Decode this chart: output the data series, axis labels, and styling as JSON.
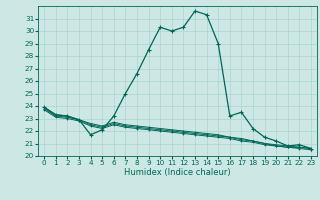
{
  "xlabel": "Humidex (Indice chaleur)",
  "bg_color": "#cde8e4",
  "line_color": "#006655",
  "grid_color": "#a8d4ce",
  "xlim": [
    -0.5,
    23.5
  ],
  "ylim": [
    20,
    32
  ],
  "yticks": [
    20,
    21,
    22,
    23,
    24,
    25,
    26,
    27,
    28,
    29,
    30,
    31
  ],
  "xticks": [
    0,
    1,
    2,
    3,
    4,
    5,
    6,
    7,
    8,
    9,
    10,
    11,
    12,
    13,
    14,
    15,
    16,
    17,
    18,
    19,
    20,
    21,
    22,
    23
  ],
  "curve_x": [
    0,
    1,
    2,
    3,
    4,
    5,
    6,
    7,
    8,
    9,
    10,
    11,
    12,
    13,
    14,
    15,
    16,
    17,
    18,
    19,
    20,
    21,
    22,
    23
  ],
  "curve_y": [
    23.9,
    23.3,
    23.2,
    22.9,
    21.7,
    22.1,
    23.2,
    25.0,
    26.6,
    28.5,
    30.3,
    30.0,
    30.3,
    31.6,
    31.3,
    29.0,
    23.2,
    23.5,
    22.2,
    21.5,
    21.2,
    20.8,
    20.9,
    20.6
  ],
  "flat1_y": [
    23.9,
    23.3,
    23.2,
    22.9,
    22.6,
    22.4,
    22.7,
    22.5,
    22.4,
    22.3,
    22.2,
    22.1,
    22.0,
    21.9,
    21.8,
    21.7,
    21.5,
    21.4,
    21.2,
    21.0,
    20.8,
    20.7,
    20.7,
    20.6
  ],
  "flat2_y": [
    23.8,
    23.2,
    23.1,
    22.9,
    22.5,
    22.3,
    22.6,
    22.4,
    22.3,
    22.2,
    22.1,
    22.0,
    21.9,
    21.8,
    21.7,
    21.6,
    21.5,
    21.3,
    21.2,
    21.0,
    20.9,
    20.8,
    20.7,
    20.6
  ],
  "flat3_y": [
    23.7,
    23.1,
    23.0,
    22.8,
    22.4,
    22.2,
    22.5,
    22.3,
    22.2,
    22.1,
    22.0,
    21.9,
    21.8,
    21.7,
    21.6,
    21.5,
    21.4,
    21.2,
    21.1,
    20.9,
    20.8,
    20.7,
    20.6,
    20.5
  ]
}
